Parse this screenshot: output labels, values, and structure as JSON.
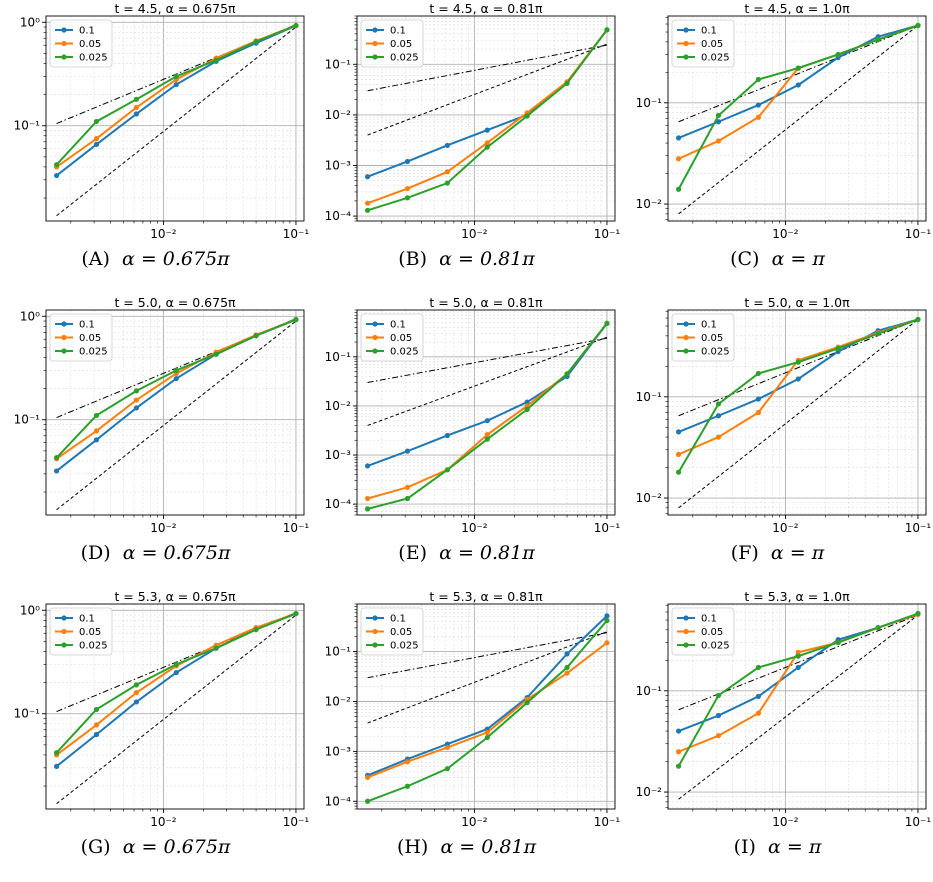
{
  "figure": {
    "colors": {
      "0.1": "#1f77b4",
      "0.05": "#ff7f0e",
      "0.025": "#2ca02c",
      "ref": "#000000"
    },
    "panels": [
      {
        "title": "t = 4.5, α = 0.675π",
        "caption_label": "(A)",
        "caption_alpha": "α = 0.675π"
      },
      {
        "title": "t = 4.5, α = 0.81π",
        "caption_label": "(B)",
        "caption_alpha": "α = 0.81π"
      },
      {
        "title": "t = 4.5, α = 1.0π",
        "caption_label": "(C)",
        "caption_alpha": "α = π"
      },
      {
        "title": "t = 5.0, α = 0.675π",
        "caption_label": "(D)",
        "caption_alpha": "α = 0.675π"
      },
      {
        "title": "t = 5.0, α = 0.81π",
        "caption_label": "(E)",
        "caption_alpha": "α = 0.81π"
      },
      {
        "title": "t = 5.0, α = 1.0π",
        "caption_label": "(F)",
        "caption_alpha": "α = π"
      },
      {
        "title": "t = 5.3, α = 0.675π",
        "caption_label": "(G)",
        "caption_alpha": "α = 0.675π"
      },
      {
        "title": "t = 5.3, α = 0.81π",
        "caption_label": "(H)",
        "caption_alpha": "α = 0.81π"
      },
      {
        "title": "t = 5.3, α = 1.0π",
        "caption_label": "(I)",
        "caption_alpha": "α = π"
      }
    ]
  },
  "chart_data": [
    {
      "type": "line",
      "xscale": "log",
      "yscale": "log",
      "grid": true,
      "legend": "top-left",
      "title": "t = 4.5, α = 0.675π",
      "x": [
        0.0015625,
        0.003125,
        0.00625,
        0.0125,
        0.025,
        0.05,
        0.1
      ],
      "xlim": [
        0.0013,
        0.115
      ],
      "ylim": [
        0.012,
        1.15
      ],
      "x_ticks": [
        0.01,
        0.1
      ],
      "x_tick_labels": [
        "10^-2",
        "10^-1"
      ],
      "y_ticks": [
        0.1,
        1
      ],
      "y_tick_labels": [
        "10^-1",
        "10^0"
      ],
      "series": [
        {
          "name": "0.1",
          "values": [
            0.033,
            0.066,
            0.13,
            0.25,
            0.42,
            0.63,
            0.93
          ]
        },
        {
          "name": "0.05",
          "values": [
            0.04,
            0.075,
            0.15,
            0.28,
            0.45,
            0.66,
            0.93
          ]
        },
        {
          "name": "0.025",
          "values": [
            0.042,
            0.11,
            0.18,
            0.3,
            0.43,
            0.65,
            0.93
          ]
        }
      ],
      "reference_lines": [
        {
          "style": "dashdot",
          "values": [
            0.105,
            0.95
          ]
        },
        {
          "style": "dashed",
          "values": [
            0.0135,
            0.9
          ]
        }
      ]
    },
    {
      "type": "line",
      "xscale": "log",
      "yscale": "log",
      "grid": true,
      "legend": "top-left",
      "title": "t = 4.5, α = 0.81π",
      "x": [
        0.0015625,
        0.003125,
        0.00625,
        0.0125,
        0.025,
        0.05,
        0.1
      ],
      "xlim": [
        0.0013,
        0.115
      ],
      "ylim": [
        8e-05,
        0.9
      ],
      "x_ticks": [
        0.01,
        0.1
      ],
      "x_tick_labels": [
        "10^-2",
        "10^-1"
      ],
      "y_ticks": [
        0.0001,
        0.001,
        0.01,
        0.1
      ],
      "y_tick_labels": [
        "10^-4",
        "10^-3",
        "10^-2",
        "10^-1"
      ],
      "series": [
        {
          "name": "0.1",
          "values": [
            0.0006,
            0.0012,
            0.0025,
            0.005,
            0.01,
            0.043,
            0.48
          ]
        },
        {
          "name": "0.05",
          "values": [
            0.00018,
            0.00035,
            0.00075,
            0.0028,
            0.011,
            0.045,
            0.48
          ]
        },
        {
          "name": "0.025",
          "values": [
            0.00013,
            0.00023,
            0.00045,
            0.0023,
            0.0095,
            0.042,
            0.48
          ]
        }
      ],
      "reference_lines": [
        {
          "style": "dashdot",
          "values": [
            0.03,
            0.24
          ]
        },
        {
          "style": "dashed",
          "values": [
            0.004,
            0.25
          ]
        }
      ]
    },
    {
      "type": "line",
      "xscale": "log",
      "yscale": "log",
      "grid": true,
      "legend": "top-left",
      "title": "t = 4.5, α = 1.0π",
      "x": [
        0.0015625,
        0.003125,
        0.00625,
        0.0125,
        0.025,
        0.05,
        0.1
      ],
      "xlim": [
        0.0013,
        0.115
      ],
      "ylim": [
        0.0068,
        0.72
      ],
      "x_ticks": [
        0.01,
        0.1
      ],
      "x_tick_labels": [
        "10^-2",
        "10^-1"
      ],
      "y_ticks": [
        0.01,
        0.1
      ],
      "y_tick_labels": [
        "10^-2",
        "10^-1"
      ],
      "series": [
        {
          "name": "0.1",
          "values": [
            0.045,
            0.065,
            0.095,
            0.15,
            0.28,
            0.45,
            0.58
          ]
        },
        {
          "name": "0.05",
          "values": [
            0.028,
            0.042,
            0.072,
            0.22,
            0.3,
            0.42,
            0.58
          ]
        },
        {
          "name": "0.025",
          "values": [
            0.014,
            0.075,
            0.17,
            0.22,
            0.3,
            0.42,
            0.58
          ]
        }
      ],
      "reference_lines": [
        {
          "style": "dashdot",
          "values": [
            0.065,
            0.58
          ]
        },
        {
          "style": "dashed",
          "values": [
            0.008,
            0.58
          ]
        }
      ]
    },
    {
      "type": "line",
      "xscale": "log",
      "yscale": "log",
      "grid": true,
      "legend": "top-left",
      "title": "t = 5.0, α = 0.675π",
      "x": [
        0.0015625,
        0.003125,
        0.00625,
        0.0125,
        0.025,
        0.05,
        0.1
      ],
      "xlim": [
        0.0013,
        0.115
      ],
      "ylim": [
        0.012,
        1.15
      ],
      "x_ticks": [
        0.01,
        0.1
      ],
      "x_tick_labels": [
        "10^-2",
        "10^-1"
      ],
      "y_ticks": [
        0.1,
        1
      ],
      "y_tick_labels": [
        "10^-1",
        "10^0"
      ],
      "series": [
        {
          "name": "0.1",
          "values": [
            0.032,
            0.064,
            0.13,
            0.25,
            0.43,
            0.65,
            0.93
          ]
        },
        {
          "name": "0.05",
          "values": [
            0.042,
            0.078,
            0.155,
            0.28,
            0.45,
            0.66,
            0.93
          ]
        },
        {
          "name": "0.025",
          "values": [
            0.043,
            0.11,
            0.19,
            0.3,
            0.43,
            0.65,
            0.93
          ]
        }
      ],
      "reference_lines": [
        {
          "style": "dashdot",
          "values": [
            0.105,
            0.95
          ]
        },
        {
          "style": "dashed",
          "values": [
            0.0135,
            0.9
          ]
        }
      ]
    },
    {
      "type": "line",
      "xscale": "log",
      "yscale": "log",
      "grid": true,
      "legend": "top-left",
      "title": "t = 5.0, α = 0.81π",
      "x": [
        0.0015625,
        0.003125,
        0.00625,
        0.0125,
        0.025,
        0.05,
        0.1
      ],
      "xlim": [
        0.0013,
        0.115
      ],
      "ylim": [
        6e-05,
        0.9
      ],
      "x_ticks": [
        0.01,
        0.1
      ],
      "x_tick_labels": [
        "10^-2",
        "10^-1"
      ],
      "y_ticks": [
        0.0001,
        0.001,
        0.01,
        0.1
      ],
      "y_tick_labels": [
        "10^-4",
        "10^-3",
        "10^-2",
        "10^-1"
      ],
      "series": [
        {
          "name": "0.1",
          "values": [
            0.0006,
            0.0012,
            0.0025,
            0.005,
            0.012,
            0.04,
            0.48
          ]
        },
        {
          "name": "0.05",
          "values": [
            0.00013,
            0.00022,
            0.0005,
            0.0026,
            0.01,
            0.045,
            0.48
          ]
        },
        {
          "name": "0.025",
          "values": [
            8e-05,
            0.00013,
            0.0005,
            0.0021,
            0.0085,
            0.045,
            0.48
          ]
        }
      ],
      "reference_lines": [
        {
          "style": "dashdot",
          "values": [
            0.03,
            0.24
          ]
        },
        {
          "style": "dashed",
          "values": [
            0.004,
            0.25
          ]
        }
      ]
    },
    {
      "type": "line",
      "xscale": "log",
      "yscale": "log",
      "grid": true,
      "legend": "top-left",
      "title": "t = 5.0, α = 1.0π",
      "x": [
        0.0015625,
        0.003125,
        0.00625,
        0.0125,
        0.025,
        0.05,
        0.1
      ],
      "xlim": [
        0.0013,
        0.115
      ],
      "ylim": [
        0.0068,
        0.72
      ],
      "x_ticks": [
        0.01,
        0.1
      ],
      "x_tick_labels": [
        "10^-2",
        "10^-1"
      ],
      "y_ticks": [
        0.01,
        0.1
      ],
      "y_tick_labels": [
        "10^-2",
        "10^-1"
      ],
      "series": [
        {
          "name": "0.1",
          "values": [
            0.045,
            0.065,
            0.095,
            0.15,
            0.28,
            0.45,
            0.58
          ]
        },
        {
          "name": "0.05",
          "values": [
            0.027,
            0.04,
            0.07,
            0.23,
            0.31,
            0.43,
            0.58
          ]
        },
        {
          "name": "0.025",
          "values": [
            0.018,
            0.085,
            0.17,
            0.22,
            0.3,
            0.42,
            0.58
          ]
        }
      ],
      "reference_lines": [
        {
          "style": "dashdot",
          "values": [
            0.065,
            0.58
          ]
        },
        {
          "style": "dashed",
          "values": [
            0.008,
            0.58
          ]
        }
      ]
    },
    {
      "type": "line",
      "xscale": "log",
      "yscale": "log",
      "grid": true,
      "legend": "top-left",
      "title": "t = 5.3, α = 0.675π",
      "x": [
        0.0015625,
        0.003125,
        0.00625,
        0.0125,
        0.025,
        0.05,
        0.1
      ],
      "xlim": [
        0.0013,
        0.115
      ],
      "ylim": [
        0.012,
        1.15
      ],
      "x_ticks": [
        0.01,
        0.1
      ],
      "x_tick_labels": [
        "10^-2",
        "10^-1"
      ],
      "y_ticks": [
        0.1,
        1
      ],
      "y_tick_labels": [
        "10^-1",
        "10^0"
      ],
      "series": [
        {
          "name": "0.1",
          "values": [
            0.031,
            0.063,
            0.13,
            0.25,
            0.43,
            0.66,
            0.93
          ]
        },
        {
          "name": "0.05",
          "values": [
            0.04,
            0.078,
            0.16,
            0.29,
            0.46,
            0.68,
            0.93
          ]
        },
        {
          "name": "0.025",
          "values": [
            0.042,
            0.11,
            0.19,
            0.3,
            0.43,
            0.65,
            0.93
          ]
        }
      ],
      "reference_lines": [
        {
          "style": "dashdot",
          "values": [
            0.105,
            0.95
          ]
        },
        {
          "style": "dashed",
          "values": [
            0.0135,
            0.9
          ]
        }
      ]
    },
    {
      "type": "line",
      "xscale": "log",
      "yscale": "log",
      "grid": true,
      "legend": "top-left",
      "title": "t = 5.3, α = 0.81π",
      "x": [
        0.0015625,
        0.003125,
        0.00625,
        0.0125,
        0.025,
        0.05,
        0.1
      ],
      "xlim": [
        0.0013,
        0.115
      ],
      "ylim": [
        7e-05,
        0.9
      ],
      "x_ticks": [
        0.01,
        0.1
      ],
      "x_tick_labels": [
        "10^-2",
        "10^-1"
      ],
      "y_ticks": [
        0.0001,
        0.001,
        0.01,
        0.1
      ],
      "y_tick_labels": [
        "10^-4",
        "10^-3",
        "10^-2",
        "10^-1"
      ],
      "series": [
        {
          "name": "0.1",
          "values": [
            0.00033,
            0.0007,
            0.0014,
            0.0028,
            0.012,
            0.09,
            0.52
          ]
        },
        {
          "name": "0.05",
          "values": [
            0.0003,
            0.00062,
            0.0012,
            0.0024,
            0.011,
            0.037,
            0.15
          ]
        },
        {
          "name": "0.025",
          "values": [
            0.0001,
            0.0002,
            0.00045,
            0.0019,
            0.0095,
            0.048,
            0.42
          ]
        }
      ],
      "reference_lines": [
        {
          "style": "dashdot",
          "values": [
            0.03,
            0.24
          ]
        },
        {
          "style": "dashed",
          "values": [
            0.0037,
            0.25
          ]
        }
      ]
    },
    {
      "type": "line",
      "xscale": "log",
      "yscale": "log",
      "grid": true,
      "legend": "top-left",
      "title": "t = 5.3, α = 1.0π",
      "x": [
        0.0015625,
        0.003125,
        0.00625,
        0.0125,
        0.025,
        0.05,
        0.1
      ],
      "xlim": [
        0.0013,
        0.115
      ],
      "ylim": [
        0.0068,
        0.72
      ],
      "x_ticks": [
        0.01,
        0.1
      ],
      "x_tick_labels": [
        "10^-2",
        "10^-1"
      ],
      "y_ticks": [
        0.01,
        0.1
      ],
      "y_tick_labels": [
        "10^-2",
        "10^-1"
      ],
      "series": [
        {
          "name": "0.1",
          "values": [
            0.04,
            0.057,
            0.088,
            0.17,
            0.32,
            0.42,
            0.57
          ]
        },
        {
          "name": "0.05",
          "values": [
            0.025,
            0.036,
            0.06,
            0.24,
            0.3,
            0.42,
            0.57
          ]
        },
        {
          "name": "0.025",
          "values": [
            0.018,
            0.09,
            0.17,
            0.22,
            0.3,
            0.42,
            0.58
          ]
        }
      ],
      "reference_lines": [
        {
          "style": "dashdot",
          "values": [
            0.065,
            0.56
          ]
        },
        {
          "style": "dashed",
          "values": [
            0.0085,
            0.56
          ]
        }
      ]
    }
  ]
}
